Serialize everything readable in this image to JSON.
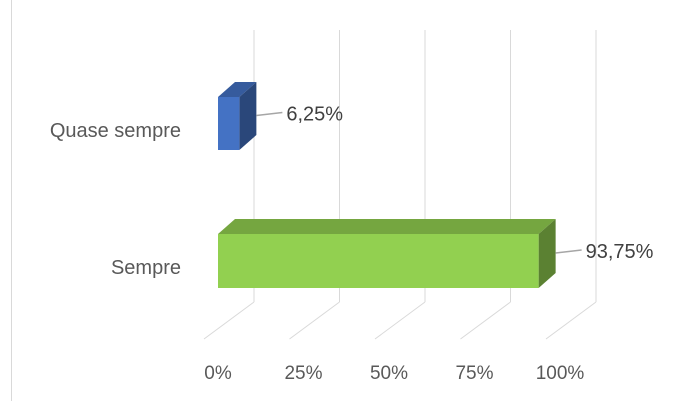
{
  "chart_data": {
    "type": "bar",
    "orientation": "horizontal",
    "style": "3d",
    "categories": [
      "Quase sempre",
      "Sempre"
    ],
    "values": [
      6.25,
      93.75
    ],
    "data_labels": [
      "6,25%",
      "93,75%"
    ],
    "colors": [
      "#4472C4",
      "#92D050"
    ],
    "xlim": [
      0,
      100
    ],
    "x_ticks": [
      "0%",
      "25%",
      "50%",
      "75%",
      "100%"
    ],
    "grid": true,
    "title": "",
    "xlabel": "",
    "ylabel": ""
  }
}
